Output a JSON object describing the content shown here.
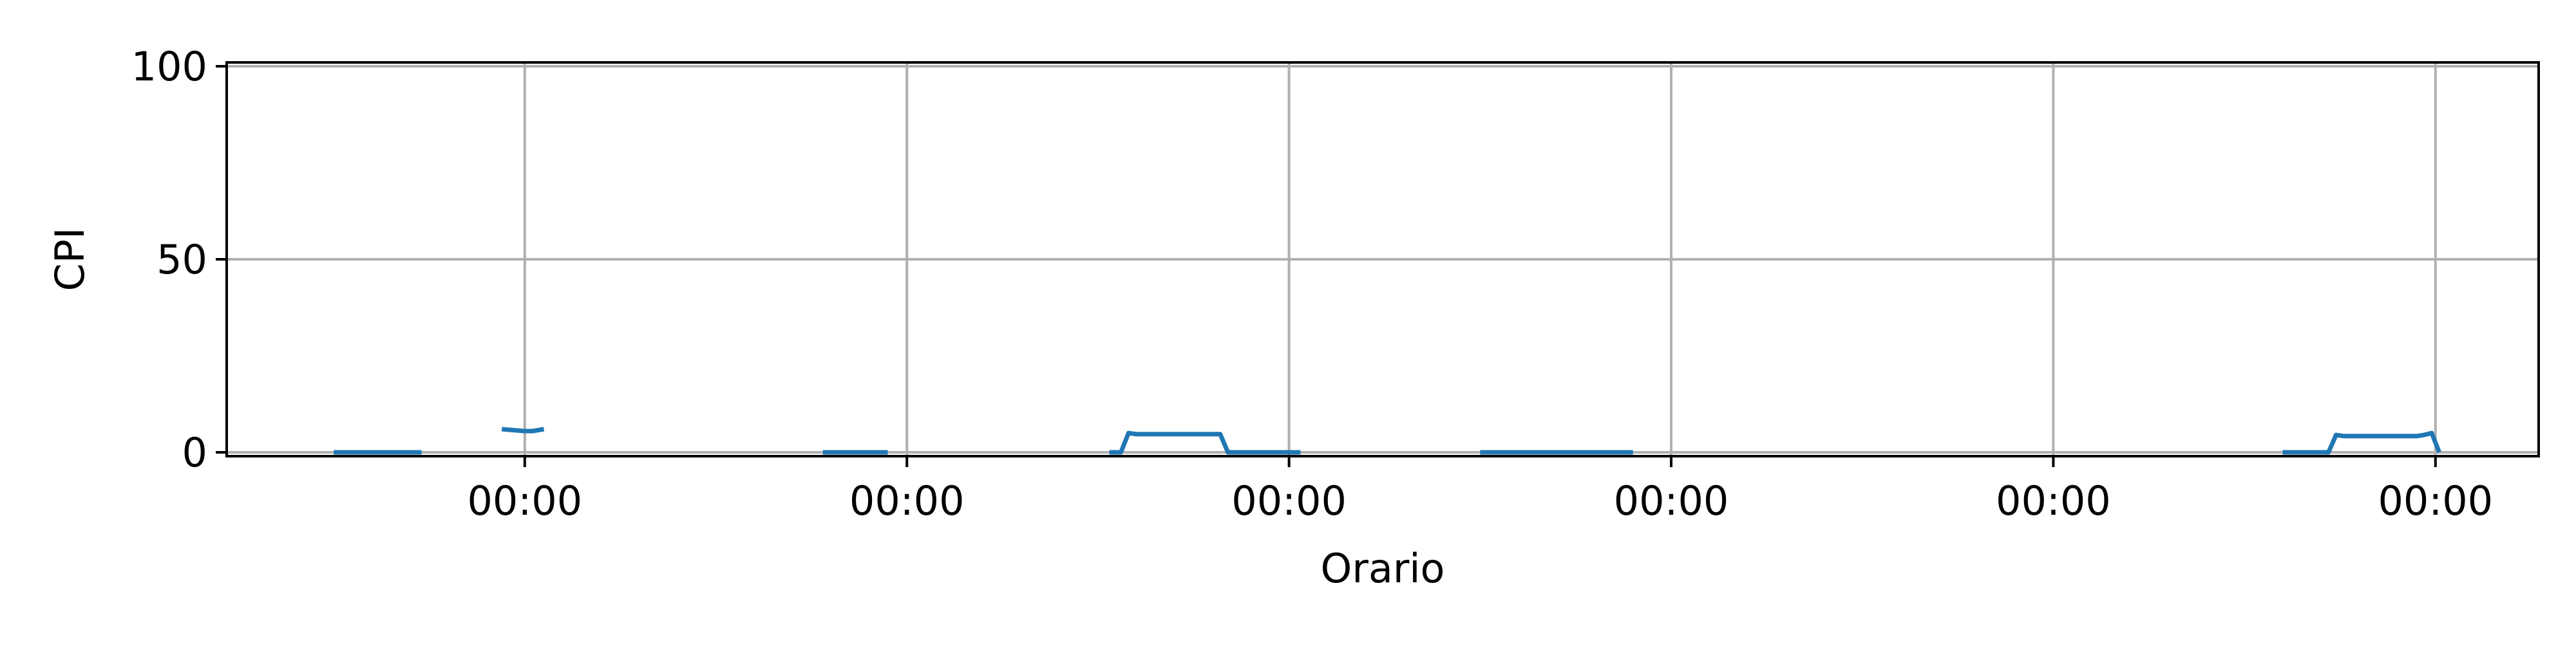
{
  "chart_data": {
    "type": "line",
    "title": "",
    "xlabel": "Orario",
    "ylabel": "CPI",
    "x_tick_labels": [
      "00:00",
      "00:00",
      "00:00",
      "00:00",
      "00:00",
      "00:00"
    ],
    "y_ticks": [
      0,
      50,
      100
    ],
    "ylim": [
      -1,
      101
    ],
    "xlim": [
      -0.78,
      5.27
    ],
    "grid": true,
    "colors": {
      "line": "#1f77b4",
      "grid": "#b0b0b0",
      "axes": "#000000"
    },
    "series": [
      {
        "segments": [
          [
            [
              -0.5,
              0
            ],
            [
              -0.27,
              0
            ]
          ],
          [
            [
              -0.06,
              6
            ],
            [
              0.0,
              5.5
            ],
            [
              0.02,
              5.5
            ],
            [
              0.05,
              6
            ]
          ],
          [
            [
              0.78,
              0
            ],
            [
              0.95,
              0
            ]
          ],
          [
            [
              1.53,
              0
            ],
            [
              1.56,
              0
            ],
            [
              1.58,
              5
            ],
            [
              1.6,
              4.7
            ],
            [
              1.8,
              4.7
            ],
            [
              1.82,
              4.7
            ],
            [
              1.84,
              0
            ],
            [
              1.9,
              0
            ],
            [
              2.03,
              0
            ]
          ],
          [
            [
              2.5,
              0
            ],
            [
              2.9,
              0
            ]
          ],
          [
            [
              4.6,
              0
            ],
            [
              4.72,
              0
            ],
            [
              4.74,
              4.5
            ],
            [
              4.76,
              4.2
            ],
            [
              4.95,
              4.2
            ],
            [
              4.97,
              4.5
            ],
            [
              4.99,
              5
            ],
            [
              5.01,
              0
            ]
          ]
        ]
      }
    ]
  }
}
